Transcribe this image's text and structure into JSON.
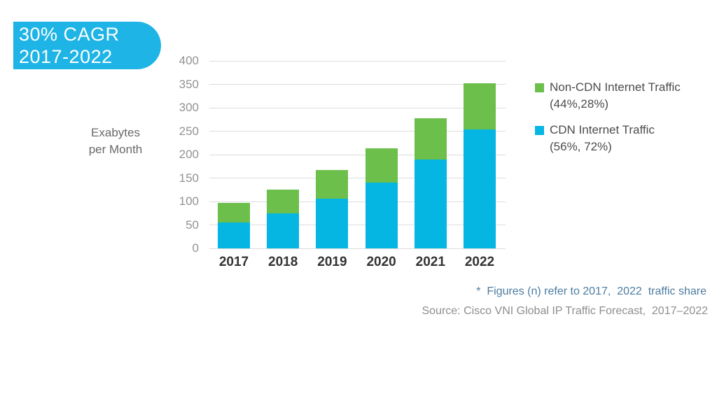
{
  "badge": {
    "line1": "30% CAGR",
    "line2": "2017-2022"
  },
  "axis_unit_label": {
    "line1": "Exabytes",
    "line2": "per Month"
  },
  "chart_data": {
    "type": "bar",
    "stacked": true,
    "categories": [
      "2017",
      "2018",
      "2019",
      "2020",
      "2021",
      "2022"
    ],
    "series": [
      {
        "name": "CDN Internet Traffic",
        "color": "#05b6e3",
        "values": [
          55,
          74,
          106,
          141,
          190,
          254
        ]
      },
      {
        "name": "Non-CDN Internet Traffic",
        "color": "#6cbf4a",
        "values": [
          42,
          52,
          61,
          73,
          87,
          98
        ]
      }
    ],
    "totals": [
      97,
      126,
      167,
      214,
      277,
      352
    ],
    "ylabel": "Exabytes per Month",
    "ylim": [
      0,
      400
    ],
    "yticks": [
      0,
      50,
      100,
      150,
      200,
      250,
      300,
      350,
      400
    ],
    "grid": true,
    "legend_position": "right"
  },
  "legend": {
    "items": [
      {
        "label": "Non-CDN Internet Traffic",
        "sublabel": "(44%,28%)",
        "color": "#6cbf4a"
      },
      {
        "label": "CDN Internet Traffic",
        "sublabel": "(56%, 72%)",
        "color": "#05b6e3"
      }
    ]
  },
  "footnote": "*  Figures (n) refer to 2017,  2022  traffic share",
  "source": "Source: Cisco VNI Global IP Traffic Forecast,  2017–2022",
  "colors": {
    "badge_bg": "#1eb4e6",
    "badge_text": "#ffffff",
    "cdn_blue": "#05b6e3",
    "non_cdn_green": "#6cbf4a",
    "gridline": "#dcdcdc",
    "axis_tick_text": "#929292",
    "year_label_text": "#333333",
    "legend_text": "#4c4c4c",
    "footnote_blue": "#4b7ca1",
    "source_gray": "#8e8e8e"
  }
}
